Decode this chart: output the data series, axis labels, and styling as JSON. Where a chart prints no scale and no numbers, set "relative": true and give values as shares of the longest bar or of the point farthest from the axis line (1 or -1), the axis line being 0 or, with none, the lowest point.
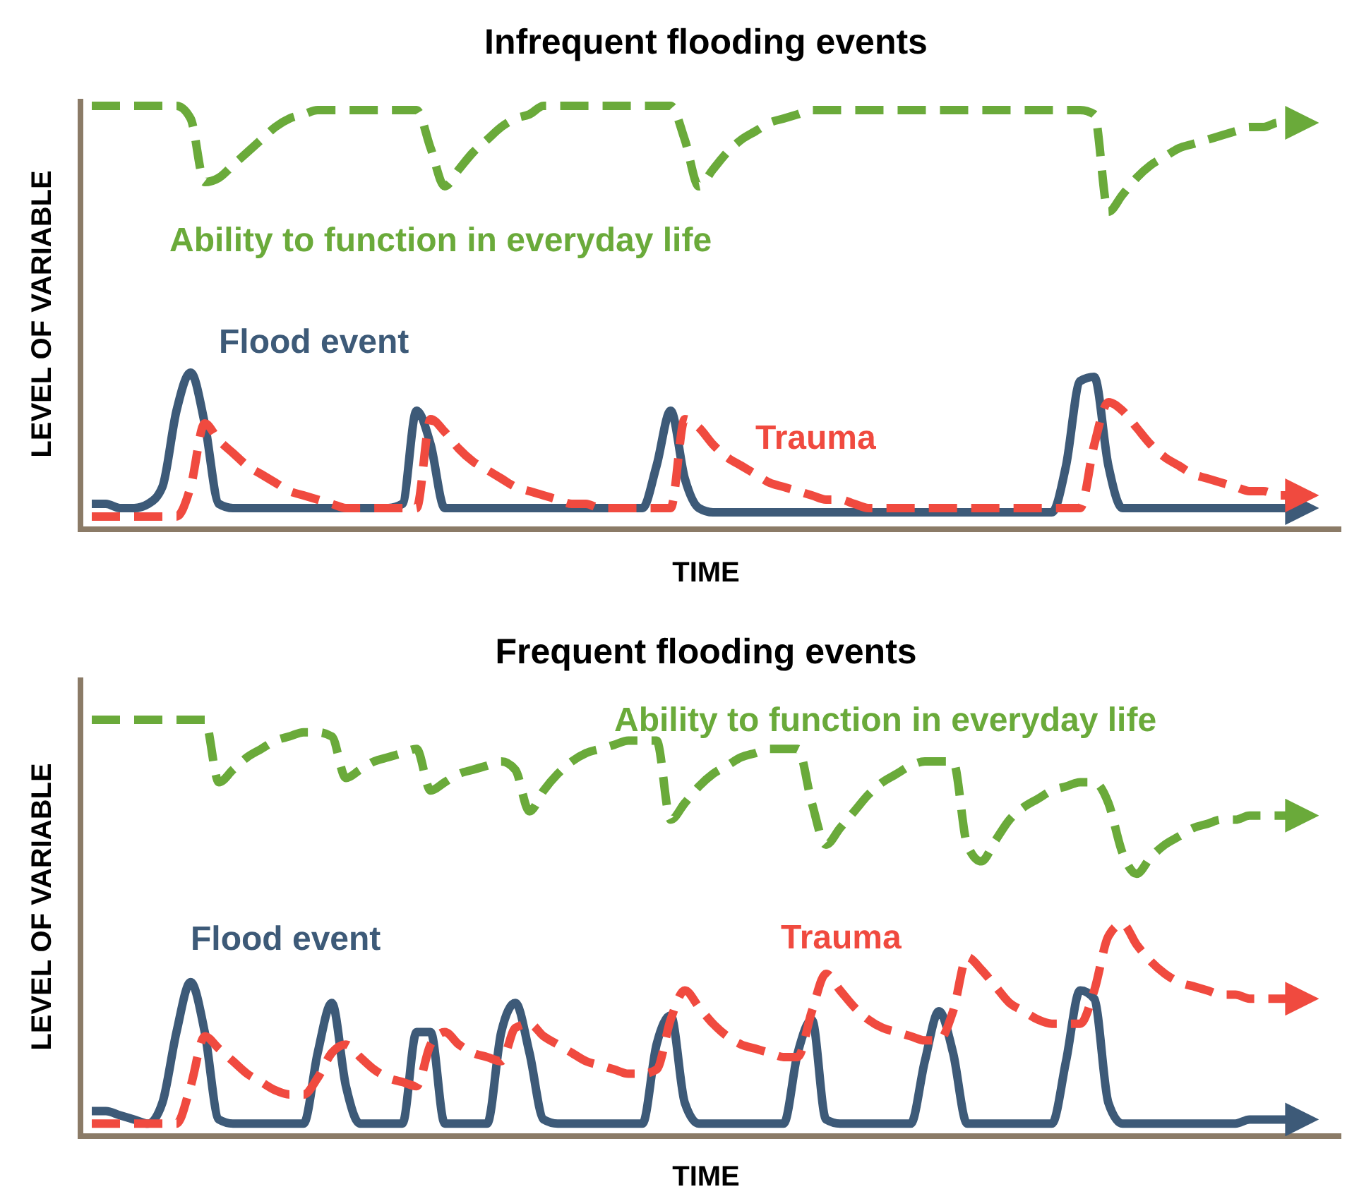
{
  "chart_data": [
    {
      "type": "line",
      "title": "Infrequent flooding events",
      "xlabel": "TIME",
      "ylabel": "LEVEL OF VARIABLE",
      "relative": true,
      "legend": false,
      "marker": "none",
      "categories": [
        null,
        null,
        null,
        null,
        null,
        null,
        null,
        null,
        null,
        null,
        null,
        null,
        null,
        null,
        null,
        null,
        null,
        null,
        null,
        null,
        null,
        null,
        null,
        null,
        null,
        null,
        null,
        null,
        null,
        null,
        null,
        null,
        null,
        null,
        null,
        null,
        null,
        null,
        null,
        null,
        null,
        null,
        null,
        null,
        null,
        null,
        null,
        null,
        null,
        null,
        null,
        null,
        null,
        null,
        null,
        null,
        null,
        null,
        null,
        null,
        null,
        null,
        null,
        null,
        null,
        null,
        null,
        null,
        null,
        null,
        null,
        null,
        null,
        null,
        null,
        null,
        null,
        null,
        null,
        null,
        null,
        null,
        null,
        null,
        null,
        null
      ],
      "series": [
        {
          "name": "Ability to function in everyday life",
          "color": "#6aaa3a",
          "line_style": "dashed",
          "values": [
            1,
            1,
            1,
            1,
            1,
            1,
            1,
            0.97,
            0.82,
            0.83,
            0.86,
            0.89,
            0.92,
            0.95,
            0.97,
            0.98,
            0.99,
            0.99,
            0.99,
            0.99,
            0.99,
            0.99,
            0.99,
            0.99,
            0.9,
            0.81,
            0.85,
            0.89,
            0.92,
            0.95,
            0.97,
            0.98,
            1,
            1,
            1,
            1,
            1,
            1,
            1,
            1,
            1,
            1,
            0.92,
            0.81,
            0.85,
            0.89,
            0.92,
            0.94,
            0.96,
            0.97,
            0.98,
            0.99,
            0.99,
            0.99,
            0.99,
            0.99,
            0.99,
            0.99,
            0.99,
            0.99,
            0.99,
            0.99,
            0.99,
            0.99,
            0.99,
            0.99,
            0.99,
            0.99,
            0.99,
            0.99,
            0.99,
            0.98,
            0.75,
            0.79,
            0.83,
            0.86,
            0.88,
            0.9,
            0.91,
            0.92,
            0.93,
            0.94,
            0.95,
            0.95,
            0.96,
            0.96
          ]
        },
        {
          "name": "Flood event",
          "color": "#3d5a78",
          "line_style": "solid",
          "values": [
            0.06,
            0.06,
            0.05,
            0.05,
            0.06,
            0.1,
            0.28,
            0.37,
            0.25,
            0.06,
            0.05,
            0.05,
            0.05,
            0.05,
            0.05,
            0.05,
            0.05,
            0.05,
            0.05,
            0.05,
            0.05,
            0.05,
            0.06,
            0.28,
            0.2,
            0.05,
            0.05,
            0.05,
            0.05,
            0.05,
            0.05,
            0.05,
            0.05,
            0.05,
            0.05,
            0.05,
            0.05,
            0.05,
            0.05,
            0.05,
            0.15,
            0.28,
            0.12,
            0.05,
            0.04,
            0.04,
            0.04,
            0.04,
            0.04,
            0.04,
            0.04,
            0.04,
            0.04,
            0.04,
            0.04,
            0.04,
            0.04,
            0.04,
            0.04,
            0.04,
            0.04,
            0.04,
            0.04,
            0.04,
            0.04,
            0.04,
            0.04,
            0.04,
            0.04,
            0.15,
            0.35,
            0.36,
            0.15,
            0.05,
            0.05,
            0.05,
            0.05,
            0.05,
            0.05,
            0.05,
            0.05,
            0.05,
            0.05,
            0.05,
            0.05,
            0.05
          ]
        },
        {
          "name": "Trauma",
          "color": "#f04a3f",
          "line_style": "dashed",
          "values": [
            0.03,
            0.03,
            0.03,
            0.03,
            0.03,
            0.03,
            0.03,
            0.1,
            0.25,
            0.21,
            0.18,
            0.15,
            0.13,
            0.11,
            0.09,
            0.08,
            0.07,
            0.06,
            0.05,
            0.05,
            0.05,
            0.05,
            0.05,
            0.05,
            0.26,
            0.23,
            0.19,
            0.16,
            0.14,
            0.12,
            0.1,
            0.09,
            0.08,
            0.07,
            0.06,
            0.06,
            0.05,
            0.05,
            0.05,
            0.05,
            0.05,
            0.05,
            0.26,
            0.24,
            0.2,
            0.17,
            0.15,
            0.13,
            0.11,
            0.1,
            0.09,
            0.08,
            0.07,
            0.07,
            0.06,
            0.05,
            0.05,
            0.05,
            0.05,
            0.05,
            0.05,
            0.05,
            0.05,
            0.05,
            0.05,
            0.05,
            0.05,
            0.05,
            0.05,
            0.05,
            0.05,
            0.2,
            0.3,
            0.28,
            0.24,
            0.2,
            0.17,
            0.15,
            0.13,
            0.12,
            0.11,
            0.1,
            0.09,
            0.09,
            0.08,
            0.08
          ]
        }
      ]
    },
    {
      "type": "line",
      "title": "Frequent flooding events",
      "xlabel": "TIME",
      "ylabel": "LEVEL OF VARIABLE",
      "relative": true,
      "legend": false,
      "marker": "none",
      "categories": [
        null,
        null,
        null,
        null,
        null,
        null,
        null,
        null,
        null,
        null,
        null,
        null,
        null,
        null,
        null,
        null,
        null,
        null,
        null,
        null,
        null,
        null,
        null,
        null,
        null,
        null,
        null,
        null,
        null,
        null,
        null,
        null,
        null,
        null,
        null,
        null,
        null,
        null,
        null,
        null,
        null,
        null,
        null,
        null,
        null,
        null,
        null,
        null,
        null,
        null,
        null,
        null,
        null,
        null,
        null,
        null,
        null,
        null,
        null,
        null,
        null,
        null,
        null,
        null,
        null,
        null,
        null,
        null,
        null,
        null,
        null,
        null,
        null,
        null,
        null,
        null,
        null,
        null,
        null,
        null,
        null,
        null,
        null,
        null,
        null,
        null
      ],
      "series": [
        {
          "name": "Ability to function in everyday life",
          "color": "#6aaa3a",
          "line_style": "dashed",
          "values": [
            1,
            1,
            1,
            1,
            1,
            1,
            1,
            1,
            1,
            0.85,
            0.88,
            0.91,
            0.93,
            0.95,
            0.96,
            0.97,
            0.97,
            0.96,
            0.86,
            0.88,
            0.9,
            0.91,
            0.92,
            0.93,
            0.83,
            0.85,
            0.87,
            0.88,
            0.89,
            0.9,
            0.88,
            0.78,
            0.83,
            0.87,
            0.9,
            0.92,
            0.93,
            0.94,
            0.95,
            0.95,
            0.95,
            0.76,
            0.8,
            0.84,
            0.87,
            0.89,
            0.91,
            0.92,
            0.93,
            0.93,
            0.93,
            0.8,
            0.7,
            0.74,
            0.78,
            0.82,
            0.85,
            0.87,
            0.89,
            0.9,
            0.9,
            0.9,
            0.7,
            0.66,
            0.71,
            0.76,
            0.79,
            0.81,
            0.83,
            0.84,
            0.85,
            0.85,
            0.8,
            0.68,
            0.63,
            0.67,
            0.7,
            0.72,
            0.74,
            0.75,
            0.76,
            0.76,
            0.77,
            0.77,
            0.77,
            0.77
          ]
        },
        {
          "name": "Flood event",
          "color": "#3d5a78",
          "line_style": "solid",
          "values": [
            0.06,
            0.06,
            0.05,
            0.04,
            0.03,
            0.08,
            0.25,
            0.37,
            0.25,
            0.04,
            0.03,
            0.03,
            0.03,
            0.03,
            0.03,
            0.03,
            0.2,
            0.32,
            0.12,
            0.03,
            0.03,
            0.03,
            0.03,
            0.25,
            0.25,
            0.03,
            0.03,
            0.03,
            0.03,
            0.25,
            0.32,
            0.2,
            0.04,
            0.03,
            0.03,
            0.03,
            0.03,
            0.03,
            0.03,
            0.03,
            0.22,
            0.29,
            0.08,
            0.03,
            0.03,
            0.03,
            0.03,
            0.03,
            0.03,
            0.03,
            0.2,
            0.28,
            0.04,
            0.03,
            0.03,
            0.03,
            0.03,
            0.03,
            0.03,
            0.18,
            0.3,
            0.2,
            0.03,
            0.03,
            0.03,
            0.03,
            0.03,
            0.03,
            0.03,
            0.18,
            0.35,
            0.33,
            0.08,
            0.03,
            0.03,
            0.03,
            0.03,
            0.03,
            0.03,
            0.03,
            0.03,
            0.03,
            0.04,
            0.04,
            0.04,
            0.04
          ]
        },
        {
          "name": "Trauma",
          "color": "#f04a3f",
          "line_style": "dashed",
          "values": [
            0.03,
            0.03,
            0.03,
            0.03,
            0.03,
            0.03,
            0.03,
            0.12,
            0.24,
            0.21,
            0.18,
            0.15,
            0.13,
            0.11,
            0.1,
            0.1,
            0.14,
            0.2,
            0.22,
            0.19,
            0.16,
            0.14,
            0.13,
            0.12,
            0.22,
            0.25,
            0.22,
            0.2,
            0.19,
            0.18,
            0.26,
            0.27,
            0.24,
            0.22,
            0.2,
            0.18,
            0.17,
            0.16,
            0.15,
            0.15,
            0.16,
            0.28,
            0.35,
            0.31,
            0.27,
            0.24,
            0.22,
            0.21,
            0.2,
            0.19,
            0.19,
            0.3,
            0.39,
            0.35,
            0.31,
            0.28,
            0.26,
            0.25,
            0.24,
            0.23,
            0.23,
            0.3,
            0.43,
            0.4,
            0.36,
            0.32,
            0.3,
            0.28,
            0.27,
            0.27,
            0.27,
            0.35,
            0.48,
            0.51,
            0.46,
            0.42,
            0.39,
            0.37,
            0.36,
            0.35,
            0.34,
            0.34,
            0.33,
            0.33,
            0.33,
            0.33
          ]
        }
      ]
    }
  ]
}
